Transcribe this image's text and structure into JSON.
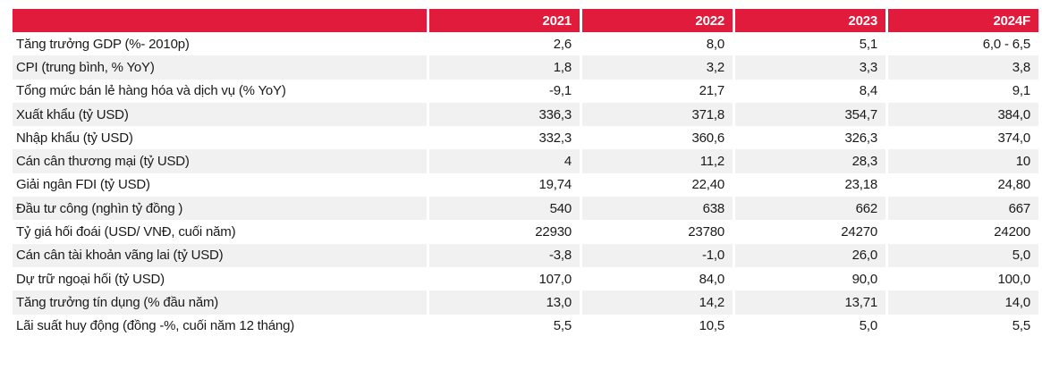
{
  "chart_data": {
    "type": "table",
    "title": "",
    "columns": [
      "2021",
      "2022",
      "2023",
      "2024F"
    ],
    "rows": [
      {
        "label": "Tăng trưởng GDP (%- 2010p)",
        "values": [
          "2,6",
          "8,0",
          "5,1",
          "6,0 - 6,5"
        ]
      },
      {
        "label": "CPI (trung bình, % YoY)",
        "values": [
          "1,8",
          "3,2",
          "3,3",
          "3,8"
        ]
      },
      {
        "label": "Tổng mức bán lẻ hàng hóa và dịch vụ (% YoY)",
        "values": [
          "-9,1",
          "21,7",
          "8,4",
          "9,1"
        ]
      },
      {
        "label": "Xuất khẩu (tỷ USD)",
        "values": [
          "336,3",
          "371,8",
          "354,7",
          "384,0"
        ]
      },
      {
        "label": "Nhập khẩu (tỷ USD)",
        "values": [
          "332,3",
          "360,6",
          "326,3",
          "374,0"
        ]
      },
      {
        "label": "Cán cân thương mại (tỷ USD)",
        "values": [
          "4",
          "11,2",
          "28,3",
          "10"
        ]
      },
      {
        "label": "Giải ngân FDI (tỷ USD)",
        "values": [
          "19,74",
          "22,40",
          "23,18",
          "24,80"
        ]
      },
      {
        "label": "Đầu tư công (nghìn tỷ đồng )",
        "values": [
          "540",
          "638",
          "662",
          "667"
        ]
      },
      {
        "label": "Tỷ giá hối đoái (USD/ VNĐ, cuối năm)",
        "values": [
          "22930",
          "23780",
          "24270",
          "24200"
        ]
      },
      {
        "label": "Cán cân tài khoản vãng lai (tỷ USD)",
        "values": [
          "-3,8",
          "-1,0",
          "26,0",
          "5,0"
        ]
      },
      {
        "label": "Dự trữ ngoại hối (tỷ USD)",
        "values": [
          "107,0",
          "84,0",
          "90,0",
          "100,0"
        ]
      },
      {
        "label": "Tăng trưởng tín dụng (% đầu năm)",
        "values": [
          "13,0",
          "14,2",
          "13,71",
          "14,0"
        ]
      },
      {
        "label": "Lãi suất huy động (đồng -%, cuối năm 12 tháng)",
        "values": [
          "5,5",
          "10,5",
          "5,0",
          "5,5"
        ]
      }
    ],
    "layout": {
      "stripe_parity": "even rows white, odd rows gray",
      "values_align": "right",
      "grid": false,
      "legend": "none"
    }
  },
  "colors": {
    "header_bg": "#e01b3c",
    "header_text": "#ffffff",
    "stripe_bg": "#f1f1f1",
    "text": "#1a1a1a",
    "background": "#ffffff"
  }
}
